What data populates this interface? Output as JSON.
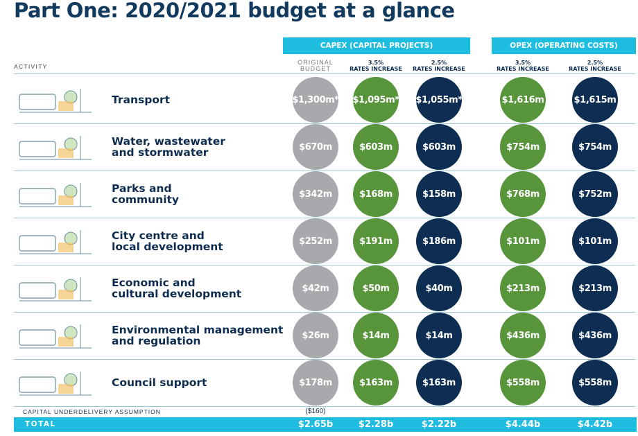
{
  "title": "Part One: 2020/2021 budget at a glance",
  "headers": {
    "capex": "CAPEX (CAPITAL PROJECTS)",
    "opex": "OPEX (OPERATING COSTS)",
    "activity": "ACTIVITY",
    "original_budget": "ORIGINAL\nBUDGET",
    "rates_35": "3.5%\nRATES INCREASE",
    "rates_25": "2.5%\nRATES INCREASE"
  },
  "rows": [
    {
      "label": "Transport",
      "values": [
        "$1,300m*",
        "$1,095m*",
        "$1,055m*",
        "$1,616m",
        "$1,615m"
      ],
      "icon": "train-cyclist-illustration"
    },
    {
      "label": "Water, wastewater\nand stormwater",
      "values": [
        "$670m",
        "$603m",
        "$603m",
        "$754m",
        "$754m"
      ],
      "icon": "water-treatment-illustration"
    },
    {
      "label": "Parks and\ncommunity",
      "values": [
        "$342m",
        "$168m",
        "$158m",
        "$768m",
        "$752m"
      ],
      "icon": "park-playground-illustration"
    },
    {
      "label": "City centre and\nlocal development",
      "values": [
        "$252m",
        "$191m",
        "$186m",
        "$101m",
        "$101m"
      ],
      "icon": "city-buildings-illustration"
    },
    {
      "label": "Economic and\ncultural development",
      "values": [
        "$42m",
        "$50m",
        "$40m",
        "$213m",
        "$213m"
      ],
      "icon": "culture-awards-illustration"
    },
    {
      "label": "Environmental management\nand regulation",
      "values": [
        "$26m",
        "$14m",
        "$14m",
        "$436m",
        "$436m"
      ],
      "icon": "nature-water-drop-illustration"
    },
    {
      "label": "Council support",
      "values": [
        "$178m",
        "$163m",
        "$163m",
        "$558m",
        "$558m"
      ],
      "icon": "council-people-bin-illustration"
    }
  ],
  "underdelivery": {
    "label": "CAPITAL UNDERDELIVERY ASSUMPTION",
    "value": "($160)"
  },
  "total": {
    "label": "TOTAL",
    "values": [
      "$2.65b",
      "$2.28b",
      "$2.22b",
      "$4.44b",
      "$4.42b"
    ]
  },
  "colors": {
    "band": "#1ebde0",
    "grey": "#a7a9ac",
    "green": "#58943a",
    "navy": "#0d2e52",
    "title": "#123a5f"
  }
}
